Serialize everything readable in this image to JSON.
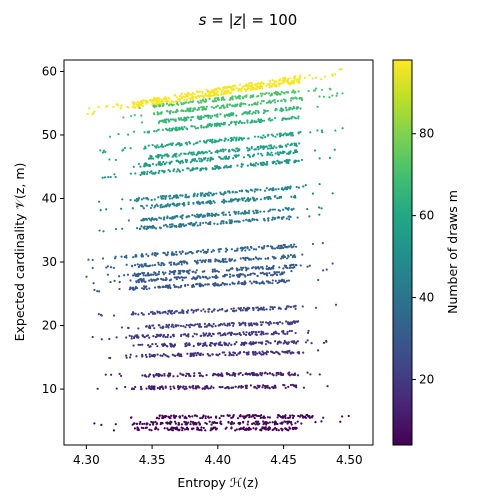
{
  "chart_data": {
    "type": "scatter",
    "title": "s = |z| =  100",
    "title_parts": {
      "lhs": "s",
      "mid": "|z|",
      "rhs": "100"
    },
    "xlabel": "Entropy ℋ(z)",
    "ylabel": "Expected cardinality 𝒱(z, m)",
    "xlim": [
      4.283,
      4.518
    ],
    "ylim": [
      1.2,
      61.8
    ],
    "x_ticks": [
      4.3,
      4.35,
      4.4,
      4.45,
      4.5
    ],
    "x_tick_labels": [
      "4.30",
      "4.35",
      "4.40",
      "4.45",
      "4.50"
    ],
    "y_ticks": [
      10,
      20,
      30,
      40,
      50,
      60
    ],
    "y_tick_labels": [
      "10",
      "20",
      "30",
      "40",
      "50",
      "60"
    ],
    "grid": false,
    "colorbar": {
      "label": "Number of draws m",
      "colormap": "viridis",
      "range": [
        4,
        98
      ],
      "ticks": [
        20,
        40,
        60,
        80
      ],
      "tick_labels": [
        "20",
        "40",
        "60",
        "80"
      ]
    },
    "bands": [
      {
        "m": 4,
        "y_at_left": 3.7,
        "slope": 0.4,
        "x_min": 4.305,
        "x_max": 4.49
      },
      {
        "m": 5,
        "y_at_left": 4.6,
        "slope": 0.5,
        "x_min": 4.3,
        "x_max": 4.495
      },
      {
        "m": 6,
        "y_at_left": 5.6,
        "slope": 0.6,
        "x_min": 4.32,
        "x_max": 4.505
      },
      {
        "m": 11,
        "y_at_left": 10.1,
        "slope": 2,
        "x_min": 4.3,
        "x_max": 4.49
      },
      {
        "m": 13,
        "y_at_left": 12.1,
        "slope": 2,
        "x_min": 4.31,
        "x_max": 4.49
      },
      {
        "m": 17,
        "y_at_left": 15.0,
        "slope": 5,
        "x_min": 4.31,
        "x_max": 4.485
      },
      {
        "m": 18,
        "y_at_left": 16.6,
        "slope": 5,
        "x_min": 4.315,
        "x_max": 4.49
      },
      {
        "m": 20,
        "y_at_left": 18.0,
        "slope": 6,
        "x_min": 4.3,
        "x_max": 4.49
      },
      {
        "m": 22,
        "y_at_left": 19.5,
        "slope": 6,
        "x_min": 4.31,
        "x_max": 4.49
      },
      {
        "m": 24,
        "y_at_left": 21.6,
        "slope": 8,
        "x_min": 4.3,
        "x_max": 4.49
      },
      {
        "m": 29,
        "y_at_left": 25.5,
        "slope": 10,
        "x_min": 4.3,
        "x_max": 4.485
      },
      {
        "m": 30,
        "y_at_left": 26.6,
        "slope": 11,
        "x_min": 4.305,
        "x_max": 4.485
      },
      {
        "m": 31,
        "y_at_left": 27.6,
        "slope": 11,
        "x_min": 4.3,
        "x_max": 4.49
      },
      {
        "m": 33,
        "y_at_left": 29.0,
        "slope": 12,
        "x_min": 4.3,
        "x_max": 4.49
      },
      {
        "m": 35,
        "y_at_left": 30.5,
        "slope": 13,
        "x_min": 4.3,
        "x_max": 4.49
      },
      {
        "m": 41,
        "y_at_left": 34.8,
        "slope": 14,
        "x_min": 4.305,
        "x_max": 4.485
      },
      {
        "m": 43,
        "y_at_left": 36.0,
        "slope": 15,
        "x_min": 4.31,
        "x_max": 4.485
      },
      {
        "m": 46,
        "y_at_left": 38.0,
        "slope": 15,
        "x_min": 4.31,
        "x_max": 4.49
      },
      {
        "m": 47,
        "y_at_left": 39.2,
        "slope": 16,
        "x_min": 4.3,
        "x_max": 4.485
      },
      {
        "m": 53,
        "y_at_left": 43.2,
        "slope": 17,
        "x_min": 4.31,
        "x_max": 4.49
      },
      {
        "m": 55,
        "y_at_left": 44.5,
        "slope": 18,
        "x_min": 4.31,
        "x_max": 4.49
      },
      {
        "m": 57,
        "y_at_left": 45.6,
        "slope": 18,
        "x_min": 4.315,
        "x_max": 4.49
      },
      {
        "m": 60,
        "y_at_left": 47.2,
        "slope": 19,
        "x_min": 4.31,
        "x_max": 4.495
      },
      {
        "m": 64,
        "y_at_left": 49.6,
        "slope": 20,
        "x_min": 4.315,
        "x_max": 4.49
      },
      {
        "m": 66,
        "y_at_left": 51.0,
        "slope": 20,
        "x_min": 4.325,
        "x_max": 4.49
      },
      {
        "m": 70,
        "y_at_left": 52.3,
        "slope": 21,
        "x_min": 4.32,
        "x_max": 4.495
      },
      {
        "m": 72,
        "y_at_left": 53.5,
        "slope": 21,
        "x_min": 4.32,
        "x_max": 4.49
      },
      {
        "m": 97,
        "y_at_left": 53.6,
        "slope": 32,
        "x_min": 4.3,
        "x_max": 4.495
      }
    ]
  }
}
